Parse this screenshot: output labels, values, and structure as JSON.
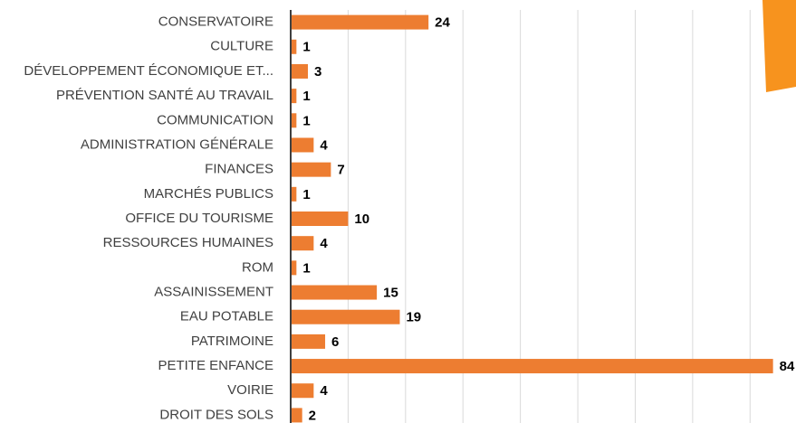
{
  "chart_data": {
    "type": "barh",
    "categories": [
      "CONSERVATOIRE",
      "CULTURE",
      "DÉVELOPPEMENT ÉCONOMIQUE ET...",
      "PRÉVENTION SANTÉ AU TRAVAIL",
      "COMMUNICATION",
      "ADMINISTRATION GÉNÉRALE",
      "FINANCES",
      "MARCHÉS PUBLICS",
      "OFFICE DU TOURISME",
      "RESSOURCES HUMAINES",
      "ROM",
      "ASSAINISSEMENT",
      "EAU POTABLE",
      "PATRIMOINE",
      "PETITE ENFANCE",
      "VOIRIE",
      "DROIT DES SOLS"
    ],
    "values": [
      24,
      1,
      3,
      1,
      1,
      4,
      7,
      1,
      10,
      4,
      1,
      15,
      19,
      6,
      84,
      4,
      2
    ],
    "color": "#ed7d31",
    "xlim": [
      0,
      88
    ],
    "xticks": [
      0,
      10,
      20,
      30,
      40,
      50,
      60,
      70,
      80
    ],
    "grid": true
  }
}
